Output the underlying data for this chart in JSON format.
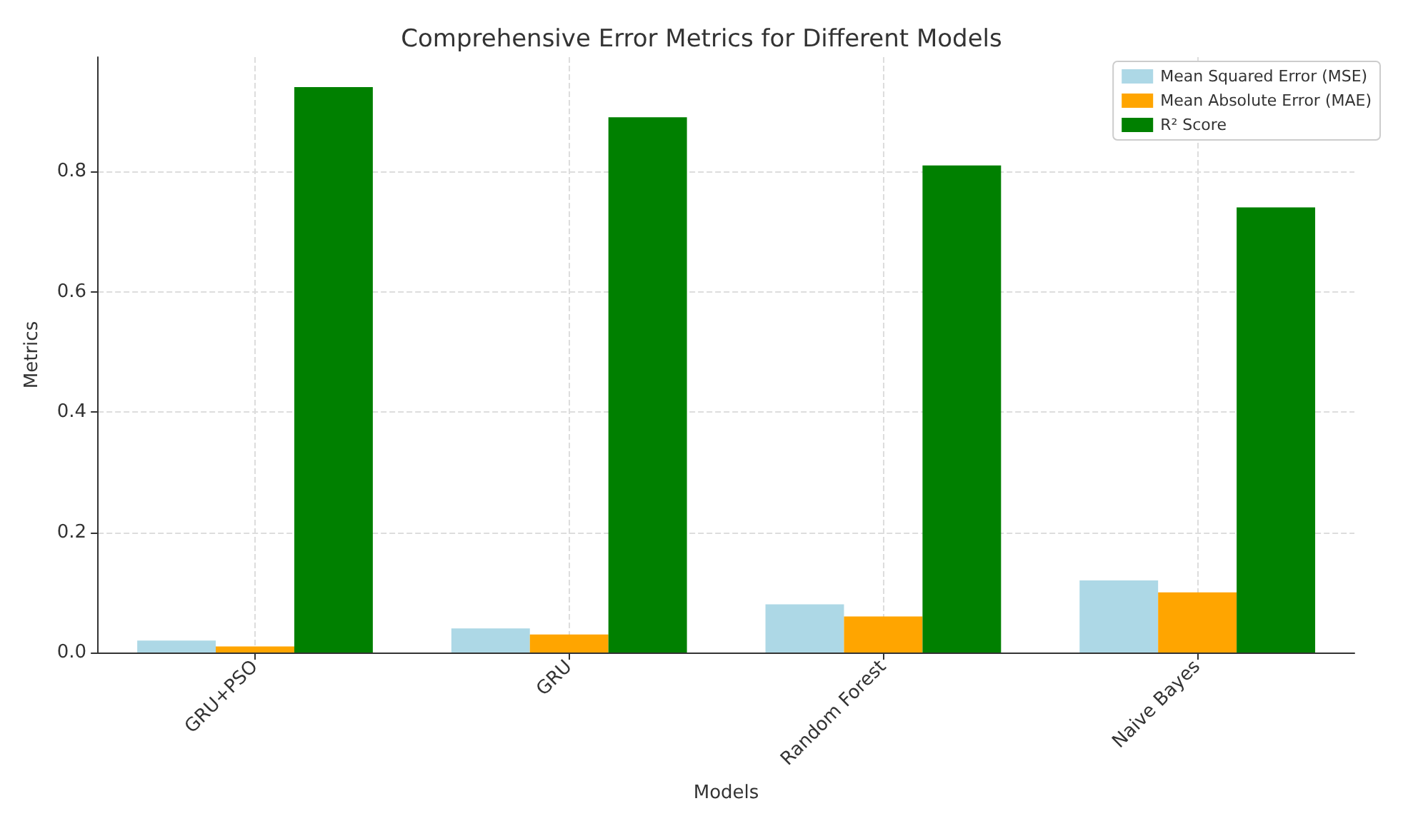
{
  "chart_data": {
    "type": "bar",
    "title": "Comprehensive Error Metrics for Different Models",
    "xlabel": "Models",
    "ylabel": "Metrics",
    "categories": [
      "GRU+PSO",
      "GRU",
      "Random Forest",
      "Naive Bayes"
    ],
    "series": [
      {
        "name": "Mean Squared Error (MSE)",
        "color": "#add8e6",
        "values": [
          0.02,
          0.04,
          0.08,
          0.12
        ]
      },
      {
        "name": "Mean Absolute Error (MAE)",
        "color": "#ffa500",
        "values": [
          0.01,
          0.03,
          0.06,
          0.1
        ]
      },
      {
        "name": "R² Score",
        "color": "#008000",
        "values": [
          0.94,
          0.89,
          0.81,
          0.74
        ]
      }
    ],
    "ylim": [
      0,
      0.99
    ],
    "yticks": [
      {
        "value": 0,
        "label": "0.0"
      },
      0.2,
      0.4,
      0.6,
      0.8
    ],
    "grid": true,
    "legend": "top right"
  }
}
